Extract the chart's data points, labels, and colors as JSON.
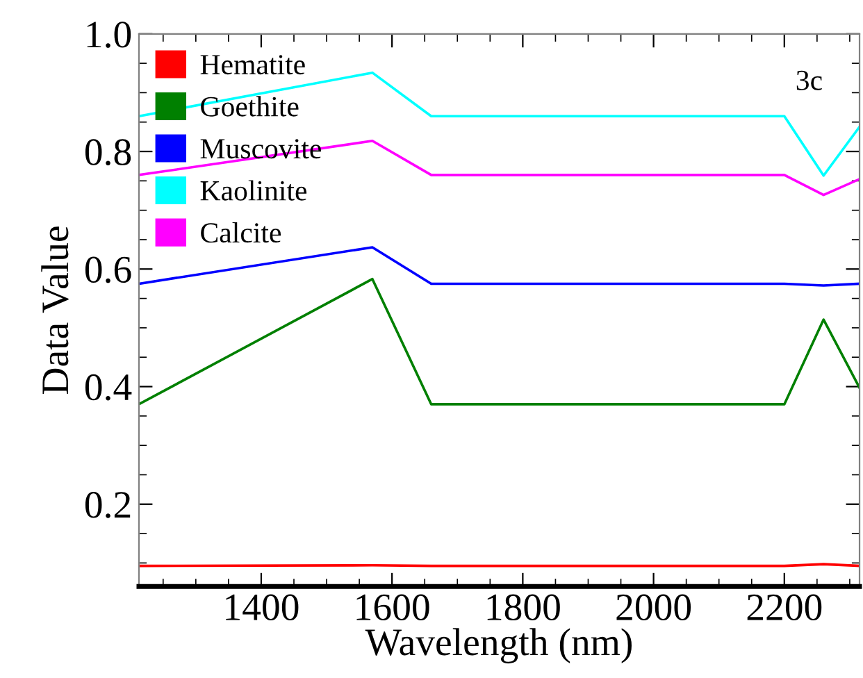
{
  "chart_data": {
    "type": "line",
    "xlabel": "Wavelength (nm)",
    "ylabel": "Data Value",
    "annotations": [
      "3c"
    ],
    "x": [
      1213,
      1570,
      1660,
      2200,
      2260,
      2315
    ],
    "series": [
      {
        "name": "Hematite",
        "color": "#ff0000",
        "values": [
          0.095,
          0.096,
          0.095,
          0.095,
          0.098,
          0.095
        ]
      },
      {
        "name": "Goethite",
        "color": "#008000",
        "values": [
          0.37,
          0.583,
          0.37,
          0.37,
          0.514,
          0.398
        ]
      },
      {
        "name": "Muscovite",
        "color": "#0000ff",
        "values": [
          0.575,
          0.637,
          0.575,
          0.575,
          0.572,
          0.575
        ]
      },
      {
        "name": "Kaolinite",
        "color": "#00ffff",
        "values": [
          0.86,
          0.934,
          0.86,
          0.86,
          0.759,
          0.842
        ]
      },
      {
        "name": "Calcite",
        "color": "#ff00ff",
        "values": [
          0.76,
          0.818,
          0.76,
          0.76,
          0.726,
          0.753
        ]
      }
    ],
    "xlim": [
      1213,
      2315
    ],
    "ylim": [
      0.06,
      1.0
    ],
    "xticks": [
      {
        "value": 1250,
        "label": null
      },
      {
        "value": 1300,
        "label": null
      },
      {
        "value": 1350,
        "label": null
      },
      1400,
      {
        "value": 1450,
        "label": null
      },
      {
        "value": 1500,
        "label": null
      },
      {
        "value": 1550,
        "label": null
      },
      1600,
      {
        "value": 1650,
        "label": null
      },
      {
        "value": 1700,
        "label": null
      },
      {
        "value": 1750,
        "label": null
      },
      1800,
      {
        "value": 1850,
        "label": null
      },
      {
        "value": 1900,
        "label": null
      },
      {
        "value": 1950,
        "label": null
      },
      2000,
      {
        "value": 2050,
        "label": null
      },
      {
        "value": 2100,
        "label": null
      },
      {
        "value": 2150,
        "label": null
      },
      2200,
      {
        "value": 2250,
        "label": null
      },
      {
        "value": 2300,
        "label": null
      }
    ],
    "yticks": [
      {
        "value": 0.1,
        "label": null
      },
      {
        "value": 0.15,
        "label": null
      },
      0.2,
      {
        "value": 0.25,
        "label": null
      },
      {
        "value": 0.3,
        "label": null
      },
      {
        "value": 0.35,
        "label": null
      },
      0.4,
      {
        "value": 0.45,
        "label": null
      },
      {
        "value": 0.5,
        "label": null
      },
      {
        "value": 0.55,
        "label": null
      },
      0.6,
      {
        "value": 0.65,
        "label": null
      },
      {
        "value": 0.7,
        "label": null
      },
      {
        "value": 0.75,
        "label": null
      },
      0.8,
      {
        "value": 0.85,
        "label": null
      },
      {
        "value": 0.9,
        "label": null
      },
      {
        "value": 0.95,
        "label": null
      },
      {
        "value": 1.0,
        "label": "1.0"
      }
    ],
    "grid": false,
    "legend": "top left",
    "marker": "none",
    "line_style": "solid"
  }
}
